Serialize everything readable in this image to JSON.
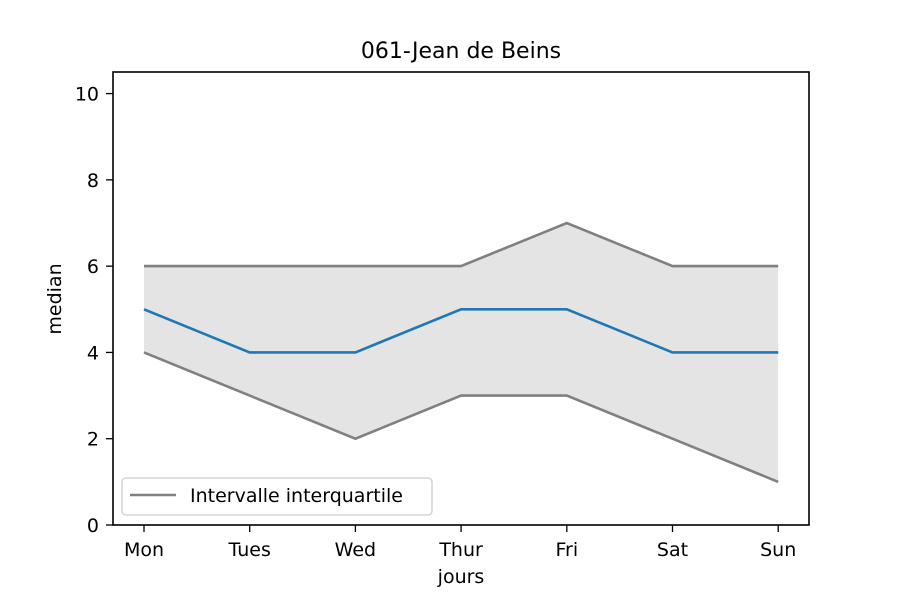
{
  "chart_data": {
    "type": "line",
    "title": "061-Jean de Beins",
    "xlabel": "jours",
    "ylabel": "median",
    "categories": [
      "Mon",
      "Tues",
      "Wed",
      "Thur",
      "Fri",
      "Sat",
      "Sun"
    ],
    "ylim": [
      0,
      10.5
    ],
    "yticks": [
      0,
      2,
      4,
      6,
      8,
      10
    ],
    "series": [
      {
        "role": "median",
        "values": [
          5,
          4,
          4,
          5,
          5,
          4,
          4
        ],
        "color": "#1f77b4"
      },
      {
        "role": "q3",
        "values": [
          6,
          6,
          6,
          6,
          7,
          6,
          6
        ],
        "color": "#808080"
      },
      {
        "role": "q1",
        "values": [
          4,
          3,
          2,
          3,
          3,
          2,
          1
        ],
        "color": "#808080"
      }
    ],
    "band": {
      "lower": "q1",
      "upper": "q3",
      "fill": "#e4e4e4"
    },
    "legend": {
      "entries": [
        "Intervalle interquartile"
      ],
      "position": "lower-left"
    },
    "grid": false
  }
}
